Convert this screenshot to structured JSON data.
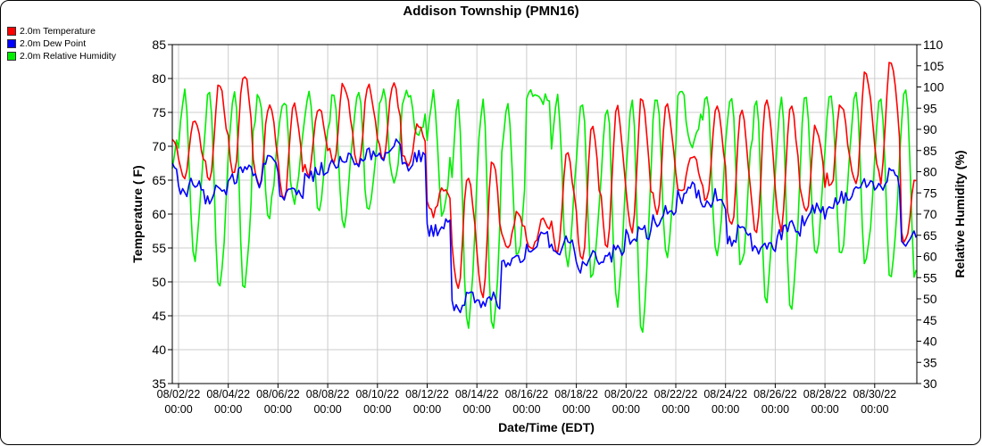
{
  "chart_data": {
    "type": "line",
    "title": "Addison Township (PMN16)",
    "xlabel": "Date/Time (EDT)",
    "ylabel": "Temperature ( F)",
    "y2label": "Relative Humidity (%)",
    "ylim": [
      35,
      85
    ],
    "y2lim": [
      30,
      110
    ],
    "yticks": [
      35,
      40,
      45,
      50,
      55,
      60,
      65,
      70,
      75,
      80,
      85
    ],
    "y2ticks": [
      30,
      35,
      40,
      45,
      50,
      55,
      60,
      65,
      70,
      75,
      80,
      85,
      90,
      95,
      100,
      105,
      110
    ],
    "xticks": [
      {
        "date": "08/02/22",
        "time": "00:00"
      },
      {
        "date": "08/04/22",
        "time": "00:00"
      },
      {
        "date": "08/06/22",
        "time": "00:00"
      },
      {
        "date": "08/08/22",
        "time": "00:00"
      },
      {
        "date": "08/10/22",
        "time": "00:00"
      },
      {
        "date": "08/12/22",
        "time": "00:00"
      },
      {
        "date": "08/14/22",
        "time": "00:00"
      },
      {
        "date": "08/16/22",
        "time": "00:00"
      },
      {
        "date": "08/18/22",
        "time": "00:00"
      },
      {
        "date": "08/20/22",
        "time": "00:00"
      },
      {
        "date": "08/22/22",
        "time": "00:00"
      },
      {
        "date": "08/24/22",
        "time": "00:00"
      },
      {
        "date": "08/26/22",
        "time": "00:00"
      },
      {
        "date": "08/28/22",
        "time": "00:00"
      },
      {
        "date": "08/30/22",
        "time": "00:00"
      }
    ],
    "x_range_days_since_0801": [
      0.75,
      30.7
    ],
    "grid": true,
    "legend_position": "top-left",
    "days": [
      1,
      2,
      3,
      4,
      5,
      6,
      7,
      8,
      9,
      10,
      11,
      12,
      13,
      14,
      15,
      16,
      17,
      18,
      19,
      20,
      21,
      22,
      23,
      24,
      25,
      26,
      27,
      28,
      29,
      30,
      31
    ],
    "series": [
      {
        "name": "2.0m Temperature",
        "axis": "left",
        "color": "#ff0000",
        "daily_low": [
          68,
          65,
          65,
          66,
          64,
          62,
          66,
          68,
          67,
          68,
          67,
          60,
          49,
          48,
          55,
          55,
          54,
          53,
          55,
          57,
          60,
          63,
          62,
          58,
          57,
          58,
          60,
          64,
          64,
          65,
          56
        ],
        "daily_high": [
          72,
          74,
          79,
          81,
          76,
          76,
          76,
          79,
          79,
          79,
          73,
          64,
          66,
          68,
          60,
          59,
          69,
          73,
          76,
          77,
          76,
          69,
          76,
          75,
          77,
          76,
          73,
          76,
          81,
          83,
          65
        ]
      },
      {
        "name": "2.0m Dew Point",
        "axis": "left",
        "color": "#0000ff",
        "daily_mean": [
          66,
          64,
          63,
          66,
          67,
          63,
          66,
          68,
          68,
          70,
          68,
          58,
          47,
          47,
          53,
          56,
          55,
          53,
          54,
          57,
          60,
          63,
          62,
          57,
          55,
          58,
          60,
          62,
          64,
          65,
          56
        ]
      },
      {
        "name": "2.0m Relative Humidity",
        "axis": "right",
        "color": "#00ee00",
        "daily_max": [
          95,
          99,
          99,
          99,
          98,
          97,
          98,
          98,
          98,
          99,
          99,
          98,
          97,
          96,
          96,
          99,
          98,
          97,
          96,
          97,
          98,
          99,
          99,
          98,
          97,
          97,
          98,
          99,
          98,
          98,
          99
        ],
        "daily_min": [
          80,
          59,
          52,
          53,
          70,
          73,
          72,
          68,
          70,
          78,
          88,
          70,
          43,
          42,
          60,
          97,
          58,
          54,
          49,
          43,
          60,
          85,
          60,
          58,
          50,
          47,
          60,
          60,
          58,
          55,
          55
        ]
      }
    ]
  }
}
